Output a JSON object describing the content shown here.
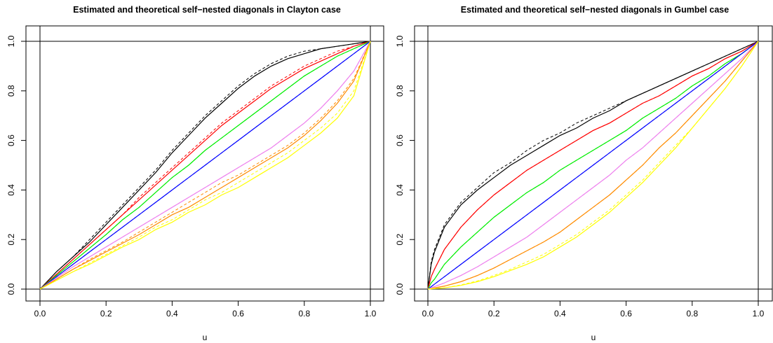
{
  "chart_data": [
    {
      "type": "line",
      "title": "Estimated and theoretical self−nested diagonals in Clayton case",
      "xlabel": "u",
      "ylabel": "",
      "xlim": [
        0,
        1
      ],
      "ylim": [
        0,
        1
      ],
      "xticks": [
        "0.0",
        "0.2",
        "0.4",
        "0.6",
        "0.8",
        "1.0"
      ],
      "yticks": [
        "0.0",
        "0.2",
        "0.4",
        "0.6",
        "0.8",
        "1.0"
      ],
      "reference_lines": {
        "h": [
          0,
          1
        ],
        "v": [
          0,
          1
        ]
      },
      "grid": false,
      "legend": "none",
      "x": [
        0,
        0.05,
        0.1,
        0.15,
        0.2,
        0.25,
        0.3,
        0.35,
        0.4,
        0.45,
        0.5,
        0.55,
        0.6,
        0.65,
        0.7,
        0.75,
        0.8,
        0.85,
        0.9,
        0.95,
        1
      ],
      "series": [
        {
          "color": "#000000",
          "estimated": [
            0,
            0.07,
            0.13,
            0.19,
            0.26,
            0.33,
            0.4,
            0.47,
            0.55,
            0.62,
            0.69,
            0.75,
            0.81,
            0.86,
            0.9,
            0.93,
            0.95,
            0.97,
            0.98,
            0.99,
            1
          ],
          "theoretical": [
            0,
            0.07,
            0.13,
            0.2,
            0.27,
            0.34,
            0.41,
            0.48,
            0.56,
            0.63,
            0.7,
            0.76,
            0.82,
            0.87,
            0.91,
            0.94,
            0.96,
            0.97,
            0.98,
            0.99,
            1
          ]
        },
        {
          "color": "#ff0000",
          "estimated": [
            0,
            0.06,
            0.12,
            0.18,
            0.24,
            0.3,
            0.36,
            0.42,
            0.48,
            0.54,
            0.6,
            0.66,
            0.71,
            0.76,
            0.81,
            0.85,
            0.89,
            0.92,
            0.95,
            0.98,
            1
          ],
          "theoretical": [
            0,
            0.06,
            0.12,
            0.18,
            0.24,
            0.3,
            0.37,
            0.43,
            0.49,
            0.55,
            0.61,
            0.67,
            0.72,
            0.77,
            0.82,
            0.86,
            0.9,
            0.93,
            0.96,
            0.98,
            1
          ]
        },
        {
          "color": "#00ee00",
          "estimated": [
            0,
            0.055,
            0.11,
            0.165,
            0.22,
            0.28,
            0.33,
            0.39,
            0.45,
            0.5,
            0.56,
            0.61,
            0.66,
            0.71,
            0.76,
            0.81,
            0.86,
            0.9,
            0.94,
            0.97,
            1
          ],
          "theoretical": [
            0,
            0.055,
            0.11,
            0.165,
            0.22,
            0.28,
            0.33,
            0.39,
            0.45,
            0.5,
            0.56,
            0.61,
            0.66,
            0.71,
            0.76,
            0.81,
            0.86,
            0.9,
            0.94,
            0.97,
            1
          ]
        },
        {
          "color": "#0000ff",
          "estimated": [
            0,
            0.05,
            0.1,
            0.15,
            0.2,
            0.25,
            0.3,
            0.35,
            0.4,
            0.45,
            0.5,
            0.55,
            0.6,
            0.65,
            0.7,
            0.75,
            0.8,
            0.85,
            0.9,
            0.95,
            1
          ],
          "theoretical": [
            0,
            0.05,
            0.1,
            0.15,
            0.2,
            0.25,
            0.3,
            0.35,
            0.4,
            0.45,
            0.5,
            0.55,
            0.6,
            0.65,
            0.7,
            0.75,
            0.8,
            0.85,
            0.9,
            0.95,
            1
          ]
        },
        {
          "color": "#ee82ee",
          "estimated": [
            0,
            0.045,
            0.09,
            0.13,
            0.17,
            0.21,
            0.25,
            0.29,
            0.33,
            0.37,
            0.41,
            0.45,
            0.49,
            0.53,
            0.57,
            0.62,
            0.67,
            0.73,
            0.8,
            0.88,
            1
          ],
          "theoretical": [
            0,
            0.045,
            0.09,
            0.13,
            0.17,
            0.21,
            0.25,
            0.29,
            0.33,
            0.37,
            0.41,
            0.45,
            0.49,
            0.53,
            0.57,
            0.62,
            0.67,
            0.73,
            0.8,
            0.88,
            1
          ]
        },
        {
          "color": "#ff8c00",
          "estimated": [
            0,
            0.04,
            0.08,
            0.115,
            0.15,
            0.185,
            0.22,
            0.26,
            0.3,
            0.33,
            0.37,
            0.41,
            0.45,
            0.49,
            0.53,
            0.57,
            0.62,
            0.68,
            0.75,
            0.84,
            1
          ],
          "theoretical": [
            0,
            0.04,
            0.08,
            0.12,
            0.155,
            0.19,
            0.23,
            0.27,
            0.31,
            0.35,
            0.39,
            0.43,
            0.46,
            0.5,
            0.54,
            0.58,
            0.63,
            0.69,
            0.76,
            0.85,
            1
          ]
        },
        {
          "color": "#ffff00",
          "estimated": [
            0,
            0.035,
            0.07,
            0.1,
            0.135,
            0.17,
            0.2,
            0.24,
            0.27,
            0.31,
            0.34,
            0.38,
            0.41,
            0.45,
            0.49,
            0.53,
            0.58,
            0.63,
            0.69,
            0.78,
            1
          ],
          "theoretical": [
            0,
            0.035,
            0.07,
            0.105,
            0.14,
            0.175,
            0.21,
            0.25,
            0.28,
            0.32,
            0.36,
            0.39,
            0.43,
            0.47,
            0.51,
            0.55,
            0.6,
            0.65,
            0.71,
            0.8,
            1
          ]
        }
      ]
    },
    {
      "type": "line",
      "title": "Estimated and theoretical self−nested diagonals in Gumbel case",
      "xlabel": "u",
      "ylabel": "",
      "xlim": [
        0,
        1
      ],
      "ylim": [
        0,
        1
      ],
      "xticks": [
        "0.0",
        "0.2",
        "0.4",
        "0.6",
        "0.8",
        "1.0"
      ],
      "yticks": [
        "0.0",
        "0.2",
        "0.4",
        "0.6",
        "0.8",
        "1.0"
      ],
      "reference_lines": {
        "h": [
          0,
          1
        ],
        "v": [
          0,
          1
        ]
      },
      "grid": false,
      "legend": "none",
      "x": [
        0,
        0.01,
        0.02,
        0.05,
        0.1,
        0.15,
        0.2,
        0.25,
        0.3,
        0.35,
        0.4,
        0.45,
        0.5,
        0.55,
        0.6,
        0.65,
        0.7,
        0.75,
        0.8,
        0.85,
        0.9,
        0.95,
        1
      ],
      "series": [
        {
          "color": "#000000",
          "estimated": [
            0,
            0.1,
            0.15,
            0.25,
            0.34,
            0.4,
            0.45,
            0.5,
            0.54,
            0.58,
            0.62,
            0.65,
            0.69,
            0.72,
            0.76,
            0.79,
            0.82,
            0.85,
            0.88,
            0.91,
            0.94,
            0.97,
            1
          ],
          "theoretical": [
            0,
            0.11,
            0.16,
            0.26,
            0.35,
            0.41,
            0.47,
            0.51,
            0.56,
            0.6,
            0.63,
            0.67,
            0.7,
            0.73,
            0.76,
            0.79,
            0.82,
            0.85,
            0.88,
            0.91,
            0.94,
            0.97,
            1
          ]
        },
        {
          "color": "#ff0000",
          "estimated": [
            0,
            0.05,
            0.08,
            0.16,
            0.25,
            0.32,
            0.38,
            0.43,
            0.48,
            0.52,
            0.56,
            0.6,
            0.64,
            0.67,
            0.71,
            0.75,
            0.78,
            0.82,
            0.86,
            0.89,
            0.93,
            0.96,
            1
          ],
          "theoretical": [
            0,
            0.05,
            0.08,
            0.16,
            0.25,
            0.32,
            0.38,
            0.43,
            0.48,
            0.52,
            0.56,
            0.6,
            0.64,
            0.67,
            0.71,
            0.75,
            0.78,
            0.82,
            0.86,
            0.89,
            0.93,
            0.96,
            1
          ]
        },
        {
          "color": "#00ee00",
          "estimated": [
            0,
            0.025,
            0.04,
            0.1,
            0.17,
            0.23,
            0.29,
            0.34,
            0.39,
            0.43,
            0.48,
            0.52,
            0.56,
            0.6,
            0.64,
            0.69,
            0.73,
            0.77,
            0.82,
            0.86,
            0.91,
            0.95,
            1
          ],
          "theoretical": [
            0,
            0.025,
            0.04,
            0.1,
            0.17,
            0.23,
            0.29,
            0.34,
            0.39,
            0.43,
            0.48,
            0.52,
            0.56,
            0.6,
            0.64,
            0.69,
            0.73,
            0.77,
            0.82,
            0.86,
            0.91,
            0.95,
            1
          ]
        },
        {
          "color": "#0000ff",
          "estimated": [
            0,
            0.01,
            0.02,
            0.05,
            0.1,
            0.15,
            0.2,
            0.25,
            0.3,
            0.35,
            0.4,
            0.45,
            0.5,
            0.55,
            0.6,
            0.65,
            0.7,
            0.75,
            0.8,
            0.85,
            0.9,
            0.95,
            1
          ],
          "theoretical": [
            0,
            0.01,
            0.02,
            0.05,
            0.1,
            0.15,
            0.2,
            0.25,
            0.3,
            0.35,
            0.4,
            0.45,
            0.5,
            0.55,
            0.6,
            0.65,
            0.7,
            0.75,
            0.8,
            0.85,
            0.9,
            0.95,
            1
          ]
        },
        {
          "color": "#ee82ee",
          "estimated": [
            0,
            0.005,
            0.01,
            0.025,
            0.055,
            0.09,
            0.13,
            0.17,
            0.21,
            0.26,
            0.31,
            0.36,
            0.41,
            0.46,
            0.52,
            0.57,
            0.63,
            0.69,
            0.75,
            0.81,
            0.87,
            0.93,
            1
          ],
          "theoretical": [
            0,
            0.005,
            0.01,
            0.025,
            0.055,
            0.09,
            0.13,
            0.17,
            0.21,
            0.26,
            0.31,
            0.36,
            0.41,
            0.46,
            0.52,
            0.57,
            0.63,
            0.69,
            0.75,
            0.81,
            0.87,
            0.93,
            1
          ]
        },
        {
          "color": "#ff8c00",
          "estimated": [
            0,
            0.002,
            0.005,
            0.012,
            0.03,
            0.055,
            0.085,
            0.12,
            0.155,
            0.19,
            0.23,
            0.28,
            0.33,
            0.38,
            0.44,
            0.5,
            0.57,
            0.63,
            0.7,
            0.77,
            0.84,
            0.92,
            1
          ],
          "theoretical": [
            0,
            0.002,
            0.005,
            0.012,
            0.03,
            0.055,
            0.085,
            0.12,
            0.155,
            0.19,
            0.23,
            0.28,
            0.33,
            0.38,
            0.44,
            0.5,
            0.57,
            0.63,
            0.7,
            0.77,
            0.84,
            0.92,
            1
          ]
        },
        {
          "color": "#ffff00",
          "estimated": [
            0,
            0.001,
            0.002,
            0.005,
            0.015,
            0.03,
            0.05,
            0.075,
            0.1,
            0.13,
            0.17,
            0.21,
            0.26,
            0.31,
            0.37,
            0.43,
            0.5,
            0.57,
            0.65,
            0.73,
            0.81,
            0.9,
            1
          ],
          "theoretical": [
            0,
            0.001,
            0.002,
            0.005,
            0.017,
            0.033,
            0.055,
            0.08,
            0.11,
            0.14,
            0.18,
            0.22,
            0.27,
            0.32,
            0.38,
            0.44,
            0.51,
            0.58,
            0.65,
            0.73,
            0.81,
            0.9,
            1
          ]
        }
      ]
    }
  ]
}
